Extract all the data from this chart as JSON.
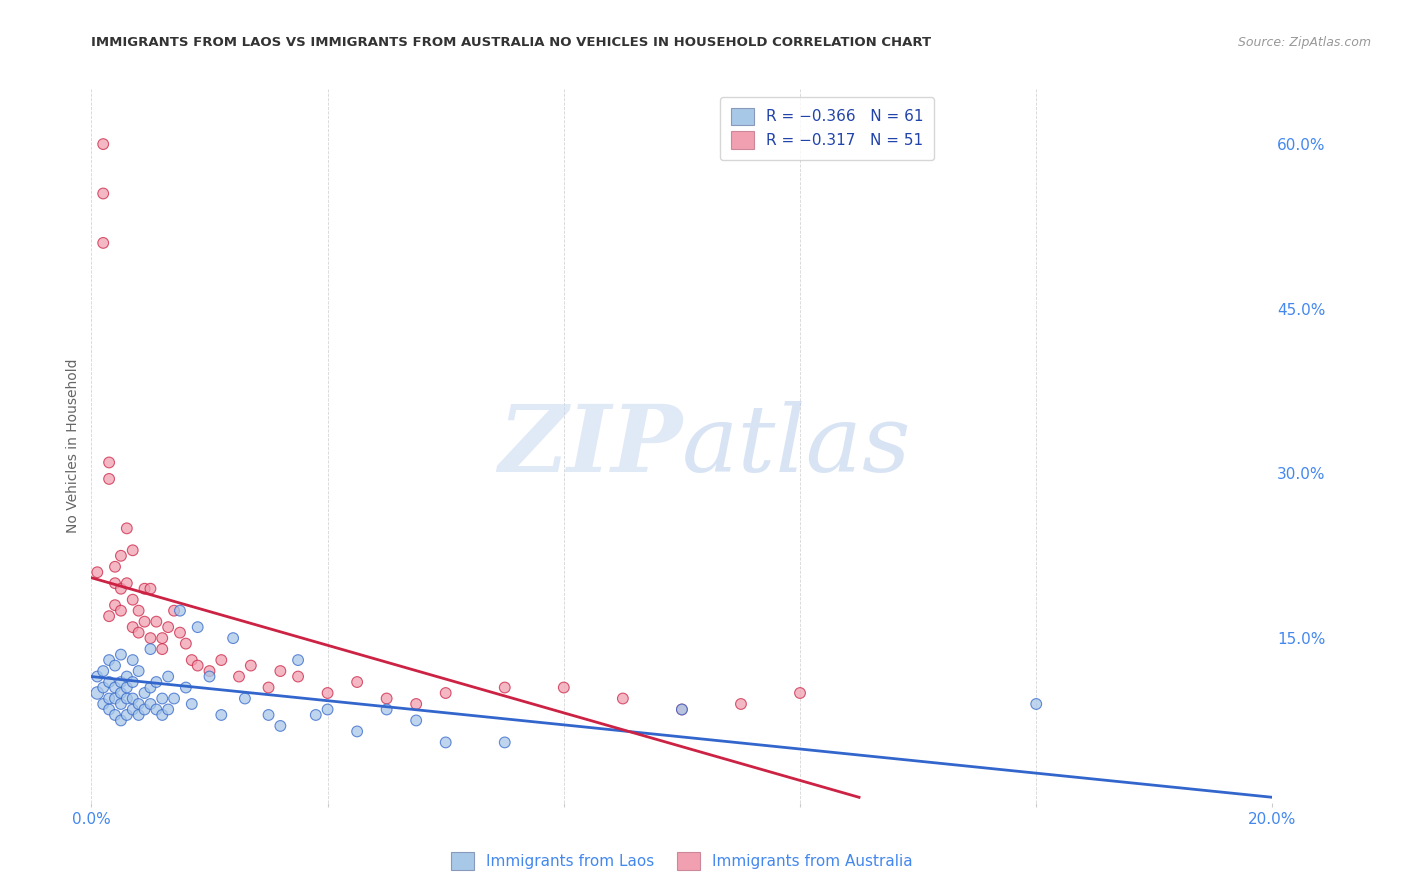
{
  "title": "IMMIGRANTS FROM LAOS VS IMMIGRANTS FROM AUSTRALIA NO VEHICLES IN HOUSEHOLD CORRELATION CHART",
  "source": "Source: ZipAtlas.com",
  "ylabel": "No Vehicles in Household",
  "xlim": [
    0.0,
    0.2
  ],
  "ylim": [
    0.0,
    0.65
  ],
  "x_ticks": [
    0.0,
    0.04,
    0.08,
    0.12,
    0.16,
    0.2
  ],
  "x_tick_labels": [
    "0.0%",
    "",
    "",
    "",
    "",
    "20.0%"
  ],
  "y_ticks_right": [
    0.15,
    0.3,
    0.45,
    0.6
  ],
  "y_tick_labels_right": [
    "15.0%",
    "30.0%",
    "45.0%",
    "60.0%"
  ],
  "legend_labels": [
    "Immigrants from Laos",
    "Immigrants from Australia"
  ],
  "blue_color": "#a8c8e8",
  "pink_color": "#f0a0b0",
  "blue_line_color": "#3366cc",
  "pink_line_color": "#cc2244",
  "watermark_zip": "ZIP",
  "watermark_atlas": "atlas",
  "laos_x": [
    0.001,
    0.001,
    0.002,
    0.002,
    0.002,
    0.003,
    0.003,
    0.003,
    0.003,
    0.004,
    0.004,
    0.004,
    0.004,
    0.005,
    0.005,
    0.005,
    0.005,
    0.005,
    0.006,
    0.006,
    0.006,
    0.006,
    0.007,
    0.007,
    0.007,
    0.007,
    0.008,
    0.008,
    0.008,
    0.009,
    0.009,
    0.01,
    0.01,
    0.01,
    0.011,
    0.011,
    0.012,
    0.012,
    0.013,
    0.013,
    0.014,
    0.015,
    0.016,
    0.017,
    0.018,
    0.02,
    0.022,
    0.024,
    0.026,
    0.03,
    0.032,
    0.035,
    0.038,
    0.04,
    0.045,
    0.05,
    0.055,
    0.06,
    0.07,
    0.1,
    0.16
  ],
  "laos_y": [
    0.1,
    0.115,
    0.09,
    0.105,
    0.12,
    0.085,
    0.095,
    0.11,
    0.13,
    0.08,
    0.095,
    0.105,
    0.125,
    0.075,
    0.09,
    0.1,
    0.11,
    0.135,
    0.08,
    0.095,
    0.105,
    0.115,
    0.085,
    0.095,
    0.11,
    0.13,
    0.08,
    0.09,
    0.12,
    0.085,
    0.1,
    0.09,
    0.105,
    0.14,
    0.085,
    0.11,
    0.08,
    0.095,
    0.085,
    0.115,
    0.095,
    0.175,
    0.105,
    0.09,
    0.16,
    0.115,
    0.08,
    0.15,
    0.095,
    0.08,
    0.07,
    0.13,
    0.08,
    0.085,
    0.065,
    0.085,
    0.075,
    0.055,
    0.055,
    0.085,
    0.09
  ],
  "laos_size": [
    80,
    60,
    60,
    60,
    60,
    60,
    60,
    60,
    60,
    60,
    60,
    60,
    60,
    60,
    60,
    60,
    60,
    60,
    60,
    60,
    60,
    60,
    60,
    60,
    60,
    60,
    60,
    60,
    60,
    60,
    60,
    60,
    60,
    60,
    60,
    60,
    60,
    60,
    60,
    60,
    60,
    60,
    60,
    60,
    60,
    60,
    60,
    60,
    60,
    60,
    60,
    60,
    60,
    60,
    60,
    60,
    60,
    60,
    60,
    60,
    60
  ],
  "aus_x": [
    0.001,
    0.002,
    0.002,
    0.002,
    0.003,
    0.003,
    0.003,
    0.004,
    0.004,
    0.004,
    0.005,
    0.005,
    0.005,
    0.006,
    0.006,
    0.007,
    0.007,
    0.007,
    0.008,
    0.008,
    0.009,
    0.009,
    0.01,
    0.01,
    0.011,
    0.012,
    0.012,
    0.013,
    0.014,
    0.015,
    0.016,
    0.017,
    0.018,
    0.02,
    0.022,
    0.025,
    0.027,
    0.03,
    0.032,
    0.035,
    0.04,
    0.045,
    0.05,
    0.055,
    0.06,
    0.07,
    0.08,
    0.09,
    0.1,
    0.11,
    0.12
  ],
  "aus_y": [
    0.21,
    0.555,
    0.51,
    0.6,
    0.17,
    0.295,
    0.31,
    0.2,
    0.215,
    0.18,
    0.195,
    0.225,
    0.175,
    0.2,
    0.25,
    0.16,
    0.185,
    0.23,
    0.155,
    0.175,
    0.165,
    0.195,
    0.15,
    0.195,
    0.165,
    0.14,
    0.15,
    0.16,
    0.175,
    0.155,
    0.145,
    0.13,
    0.125,
    0.12,
    0.13,
    0.115,
    0.125,
    0.105,
    0.12,
    0.115,
    0.1,
    0.11,
    0.095,
    0.09,
    0.1,
    0.105,
    0.105,
    0.095,
    0.085,
    0.09,
    0.1
  ],
  "aus_size": [
    60,
    60,
    60,
    60,
    60,
    60,
    60,
    60,
    60,
    60,
    60,
    60,
    60,
    60,
    60,
    60,
    60,
    60,
    60,
    60,
    60,
    60,
    60,
    60,
    60,
    60,
    60,
    60,
    60,
    60,
    60,
    60,
    60,
    60,
    60,
    60,
    60,
    60,
    60,
    60,
    60,
    60,
    60,
    60,
    60,
    60,
    60,
    60,
    60,
    60,
    60
  ],
  "blue_trendline_x": [
    0.0,
    0.2
  ],
  "blue_trendline_y": [
    0.115,
    0.005
  ],
  "pink_trendline_x": [
    0.0,
    0.13
  ],
  "pink_trendline_y": [
    0.205,
    0.005
  ]
}
